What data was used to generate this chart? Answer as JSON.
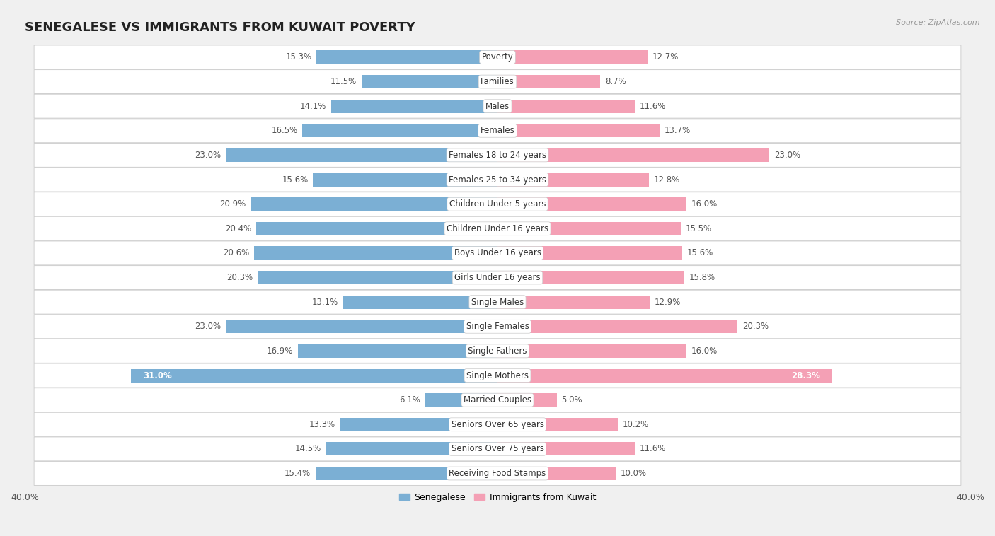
{
  "title": "SENEGALESE VS IMMIGRANTS FROM KUWAIT POVERTY",
  "source": "Source: ZipAtlas.com",
  "categories": [
    "Poverty",
    "Families",
    "Males",
    "Females",
    "Females 18 to 24 years",
    "Females 25 to 34 years",
    "Children Under 5 years",
    "Children Under 16 years",
    "Boys Under 16 years",
    "Girls Under 16 years",
    "Single Males",
    "Single Females",
    "Single Fathers",
    "Single Mothers",
    "Married Couples",
    "Seniors Over 65 years",
    "Seniors Over 75 years",
    "Receiving Food Stamps"
  ],
  "senegalese": [
    15.3,
    11.5,
    14.1,
    16.5,
    23.0,
    15.6,
    20.9,
    20.4,
    20.6,
    20.3,
    13.1,
    23.0,
    16.9,
    31.0,
    6.1,
    13.3,
    14.5,
    15.4
  ],
  "kuwait": [
    12.7,
    8.7,
    11.6,
    13.7,
    23.0,
    12.8,
    16.0,
    15.5,
    15.6,
    15.8,
    12.9,
    20.3,
    16.0,
    28.3,
    5.0,
    10.2,
    11.6,
    10.0
  ],
  "senegalese_color": "#7bafd4",
  "kuwait_color": "#f4a0b5",
  "background_color": "#f0f0f0",
  "row_bg_color": "#ffffff",
  "row_border_color": "#d0d0d0",
  "xlim": 40.0,
  "bar_height": 0.55,
  "legend_labels": [
    "Senegalese",
    "Immigrants from Kuwait"
  ],
  "title_fontsize": 13,
  "label_fontsize": 8.5,
  "value_fontsize": 8.5,
  "tick_fontsize": 9,
  "single_mothers_idx": 13
}
